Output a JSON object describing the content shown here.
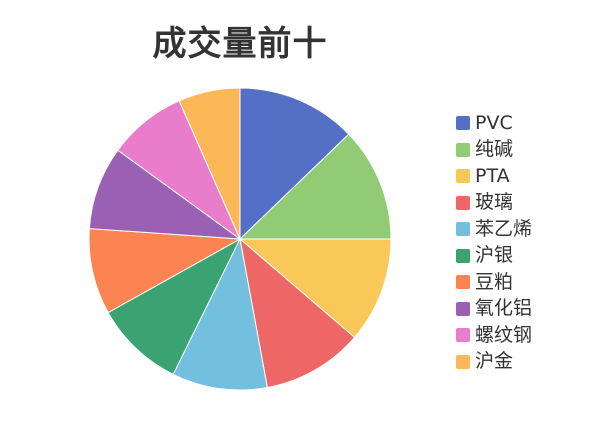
{
  "chart_data": {
    "type": "pie",
    "title": "成交量前十",
    "categories": [
      "PVC",
      "纯碱",
      "PTA",
      "玻璃",
      "苯乙烯",
      "沪银",
      "豆粕",
      "氧化铝",
      "螺纹钢",
      "沪金"
    ],
    "values": [
      12.8,
      12.2,
      11.3,
      10.8,
      10.2,
      9.6,
      9.2,
      8.9,
      8.4,
      6.6
    ],
    "colors": [
      "#5470c6",
      "#91cc75",
      "#fac858",
      "#ee6666",
      "#73c0de",
      "#3ba272",
      "#fc8452",
      "#9a60b4",
      "#ea7ccc",
      "#fcb856"
    ],
    "legend": "right"
  }
}
